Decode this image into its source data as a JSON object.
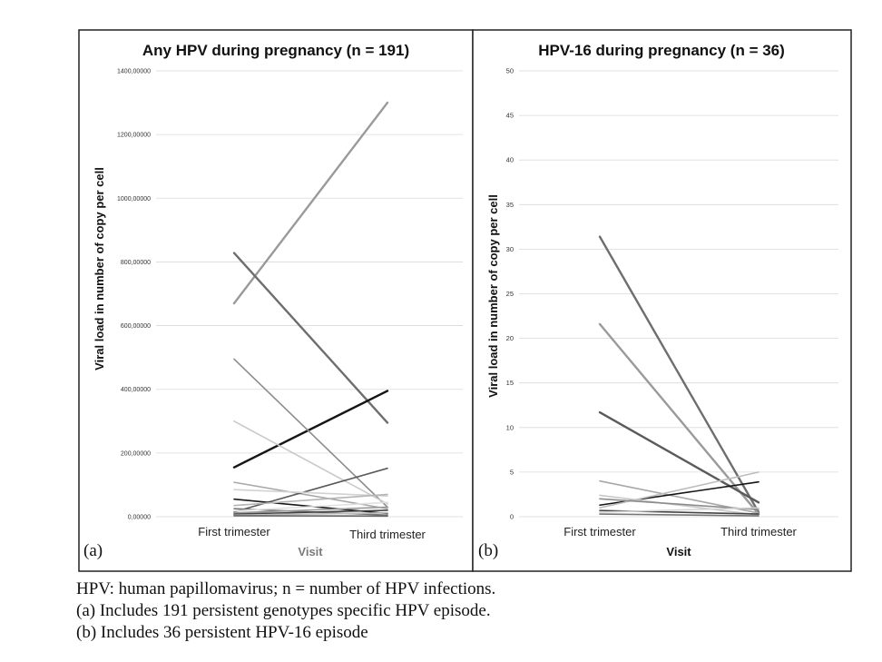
{
  "chart_data": [
    {
      "type": "line",
      "panel_label": "(a)",
      "title": "Any HPV during pregnancy (n = 191)",
      "xlabel": "Visit",
      "ylabel": "Viral load in number of copy per cell",
      "categories": [
        "First trimester",
        "Third trimester"
      ],
      "ylim": [
        0,
        1400
      ],
      "yticks": [
        "0,00000",
        "200,00000",
        "400,00000",
        "600,00000",
        "800,00000",
        "1000,00000",
        "1200,00000",
        "1400,00000"
      ],
      "grid": true,
      "series": [
        {
          "values": [
            670,
            1300
          ],
          "color": "#9a9a9a"
        },
        {
          "values": [
            828,
            295
          ],
          "color": "#6e6e6e"
        },
        {
          "values": [
            155,
            395
          ],
          "color": "#151515"
        },
        {
          "values": [
            495,
            30
          ],
          "color": "#8c8c8c"
        },
        {
          "values": [
            300,
            40
          ],
          "color": "#c9c9c9"
        },
        {
          "values": [
            108,
            25
          ],
          "color": "#a8a8a8"
        },
        {
          "values": [
            15,
            152
          ],
          "color": "#5a5a5a"
        },
        {
          "values": [
            85,
            65
          ],
          "color": "#d2d2d2"
        },
        {
          "values": [
            55,
            10
          ],
          "color": "#1a1a1a"
        },
        {
          "values": [
            35,
            70
          ],
          "color": "#b5b5b5"
        },
        {
          "values": [
            25,
            5
          ],
          "color": "#777777"
        },
        {
          "values": [
            18,
            45
          ],
          "color": "#e0e0e0"
        },
        {
          "values": [
            12,
            30
          ],
          "color": "#999999"
        },
        {
          "values": [
            8,
            20
          ],
          "color": "#444444"
        },
        {
          "values": [
            5,
            12
          ],
          "color": "#bbbbbb"
        },
        {
          "values": [
            3,
            2
          ],
          "color": "#666666"
        }
      ]
    },
    {
      "type": "line",
      "panel_label": "(b)",
      "title": "HPV-16 during pregnancy (n = 36)",
      "xlabel": "Visit",
      "ylabel": "Viral load in number of copy per cell",
      "categories": [
        "First trimester",
        "Third trimester"
      ],
      "ylim": [
        0,
        50
      ],
      "yticks": [
        "0",
        "5",
        "10",
        "15",
        "20",
        "25",
        "30",
        "35",
        "40",
        "45",
        "50"
      ],
      "grid": true,
      "series": [
        {
          "values": [
            31.4,
            0.5
          ],
          "color": "#6e6e6e"
        },
        {
          "values": [
            21.6,
            0.3
          ],
          "color": "#9a9a9a"
        },
        {
          "values": [
            11.7,
            1.6
          ],
          "color": "#5a5a5a"
        },
        {
          "values": [
            4.0,
            0.4
          ],
          "color": "#a8a8a8"
        },
        {
          "values": [
            1.3,
            3.9
          ],
          "color": "#151515"
        },
        {
          "values": [
            2.4,
            0.2
          ],
          "color": "#c9c9c9"
        },
        {
          "values": [
            1.0,
            5.0
          ],
          "color": "#bdbdbd"
        },
        {
          "values": [
            2.0,
            0.8
          ],
          "color": "#8c8c8c"
        },
        {
          "values": [
            0.7,
            0.3
          ],
          "color": "#444444"
        },
        {
          "values": [
            0.5,
            1.0
          ],
          "color": "#d2d2d2"
        },
        {
          "values": [
            0.3,
            0.1
          ],
          "color": "#777777"
        }
      ]
    }
  ],
  "caption": {
    "line1": "HPV: human papillomavirus; n = number of HPV infections.",
    "line2": "(a) Includes 191 persistent genotypes specific HPV episode.",
    "line3": "(b) Includes 36 persistent HPV-16 episode"
  }
}
